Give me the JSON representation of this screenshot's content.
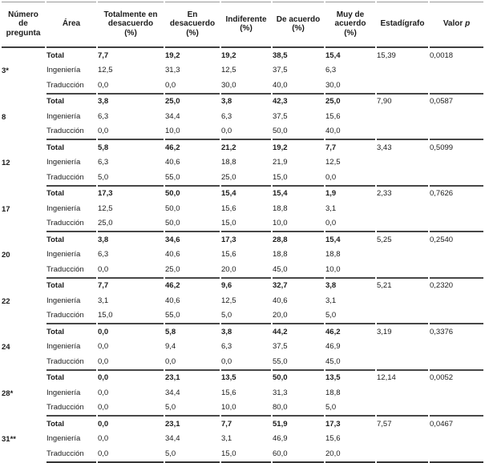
{
  "table": {
    "headers": [
      {
        "label": "Número\nde\npregunta"
      },
      {
        "label": "Área"
      },
      {
        "label": "Totalmente en\ndesacuerdo\n(%)"
      },
      {
        "label": "En\ndesacuerdo\n(%)"
      },
      {
        "label": "Indiferente\n(%)"
      },
      {
        "label": "De acuerdo\n(%)"
      },
      {
        "label": "Muy de\nacuerdo\n(%)"
      },
      {
        "label": "Estadígrafo"
      },
      {
        "label": "Valor ",
        "italic": "p"
      }
    ],
    "groups": [
      {
        "question": "3*",
        "rows": [
          {
            "area": "Total",
            "values": [
              "7,7",
              "19,2",
              "19,2",
              "38,5",
              "15,4"
            ],
            "estadigrafo": "15,39",
            "valor_p": "0,0018"
          },
          {
            "area": "Ingeniería",
            "values": [
              "12,5",
              "31,3",
              "12,5",
              "37,5",
              "6,3"
            ]
          },
          {
            "area": "Traducción",
            "values": [
              "0,0",
              "0,0",
              "30,0",
              "40,0",
              "30,0"
            ]
          }
        ]
      },
      {
        "question": "8",
        "rows": [
          {
            "area": "Total",
            "values": [
              "3,8",
              "25,0",
              "3,8",
              "42,3",
              "25,0"
            ],
            "estadigrafo": "7,90",
            "valor_p": "0,0587"
          },
          {
            "area": "Ingeniería",
            "values": [
              "6,3",
              "34,4",
              "6,3",
              "37,5",
              "15,6"
            ]
          },
          {
            "area": "Traducción",
            "values": [
              "0,0",
              "10,0",
              "0,0",
              "50,0",
              "40,0"
            ]
          }
        ]
      },
      {
        "question": "12",
        "rows": [
          {
            "area": "Total",
            "values": [
              "5,8",
              "46,2",
              "21,2",
              "19,2",
              "7,7"
            ],
            "estadigrafo": "3,43",
            "valor_p": "0,5099"
          },
          {
            "area": "Ingeniería",
            "values": [
              "6,3",
              "40,6",
              "18,8",
              "21,9",
              "12,5"
            ]
          },
          {
            "area": "Traducción",
            "values": [
              "5,0",
              "55,0",
              "25,0",
              "15,0",
              "0,0"
            ]
          }
        ]
      },
      {
        "question": "17",
        "rows": [
          {
            "area": "Total",
            "values": [
              "17,3",
              "50,0",
              "15,4",
              "15,4",
              "1,9"
            ],
            "estadigrafo": "2,33",
            "valor_p": "0,7626"
          },
          {
            "area": "Ingeniería",
            "values": [
              "12,5",
              "50,0",
              "15,6",
              "18,8",
              "3,1"
            ]
          },
          {
            "area": "Traducción",
            "values": [
              "25,0",
              "50,0",
              "15,0",
              "10,0",
              "0,0"
            ]
          }
        ]
      },
      {
        "question": "20",
        "rows": [
          {
            "area": "Total",
            "values": [
              "3,8",
              "34,6",
              "17,3",
              "28,8",
              "15,4"
            ],
            "estadigrafo": "5,25",
            "valor_p": "0,2540"
          },
          {
            "area": "Ingeniería",
            "values": [
              "6,3",
              "40,6",
              "15,6",
              "18,8",
              "18,8"
            ]
          },
          {
            "area": "Traducción",
            "values": [
              "0,0",
              "25,0",
              "20,0",
              "45,0",
              "10,0"
            ]
          }
        ]
      },
      {
        "question": "22",
        "rows": [
          {
            "area": "Total",
            "values": [
              "7,7",
              "46,2",
              "9,6",
              "32,7",
              "3,8"
            ],
            "estadigrafo": "5,21",
            "valor_p": "0,2320"
          },
          {
            "area": "Ingeniería",
            "values": [
              "3,1",
              "40,6",
              "12,5",
              "40,6",
              "3,1"
            ]
          },
          {
            "area": "Traducción",
            "values": [
              "15,0",
              "55,0",
              "5,0",
              "20,0",
              "5,0"
            ]
          }
        ]
      },
      {
        "question": "24",
        "rows": [
          {
            "area": "Total",
            "values": [
              "0,0",
              "5,8",
              "3,8",
              "44,2",
              "46,2"
            ],
            "estadigrafo": "3,19",
            "valor_p": "0,3376"
          },
          {
            "area": "Ingeniería",
            "values": [
              "0,0",
              "9,4",
              "6,3",
              "37,5",
              "46,9"
            ]
          },
          {
            "area": "Traducción",
            "values": [
              "0,0",
              "0,0",
              "0,0",
              "55,0",
              "45,0"
            ]
          }
        ]
      },
      {
        "question": "28*",
        "rows": [
          {
            "area": "Total",
            "values": [
              "0,0",
              "23,1",
              "13,5",
              "50,0",
              "13,5"
            ],
            "estadigrafo": "12,14",
            "valor_p": "0,0052"
          },
          {
            "area": "Ingeniería",
            "values": [
              "0,0",
              "34,4",
              "15,6",
              "31,3",
              "18,8"
            ]
          },
          {
            "area": "Traducción",
            "values": [
              "0,0",
              "5,0",
              "10,0",
              "80,0",
              "5,0"
            ]
          }
        ]
      },
      {
        "question": "31**",
        "rows": [
          {
            "area": "Total",
            "values": [
              "0,0",
              "23,1",
              "7,7",
              "51,9",
              "17,3"
            ],
            "estadigrafo": "7,57",
            "valor_p": "0,0467"
          },
          {
            "area": "Ingeniería",
            "values": [
              "0,0",
              "34,4",
              "3,1",
              "46,9",
              "15,6"
            ]
          },
          {
            "area": "Traducción",
            "values": [
              "0,0",
              "5,0",
              "15,0",
              "60,0",
              "20,0"
            ]
          }
        ]
      }
    ]
  },
  "chart_data": {
    "type": "table",
    "title": "",
    "columns": [
      "Número de pregunta",
      "Área",
      "Totalmente en desacuerdo (%)",
      "En desacuerdo (%)",
      "Indiferente (%)",
      "De acuerdo (%)",
      "Muy de acuerdo (%)",
      "Estadígrafo",
      "Valor p"
    ]
  }
}
